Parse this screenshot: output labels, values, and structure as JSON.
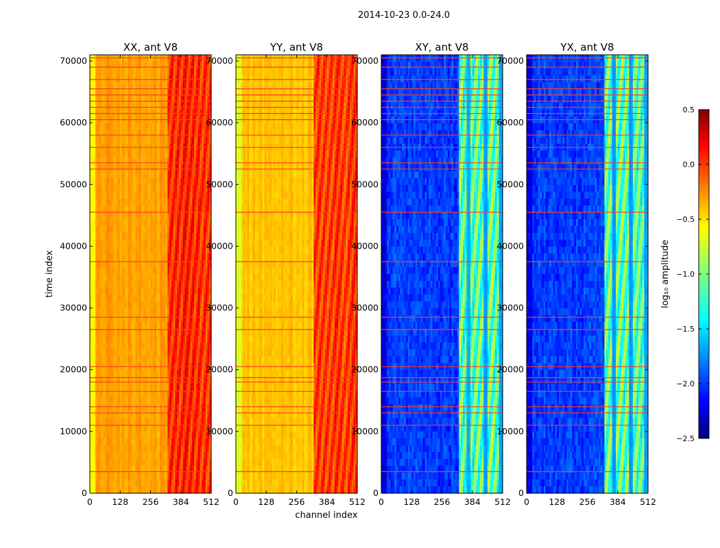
{
  "chart_data": {
    "type": "heatmap",
    "suptitle": "2014-10-23 0.0-24.0",
    "xlabel": "channel index",
    "ylabel": "time index",
    "x_range": [
      0,
      512
    ],
    "y_range": [
      0,
      71000
    ],
    "x_ticks": [
      0,
      128,
      256,
      384,
      512
    ],
    "y_ticks": [
      0,
      10000,
      20000,
      30000,
      40000,
      50000,
      60000,
      70000
    ],
    "colormap": "jet",
    "colorbar": {
      "label": "log₁₀ amplitude",
      "range": [
        -2.5,
        0.5
      ],
      "ticks": [
        0.5,
        0.0,
        -0.5,
        -1.0,
        -1.5,
        -2.0,
        -2.5
      ],
      "tick_labels": [
        "0.5",
        "0.0",
        "−0.5",
        "−1.0",
        "−1.5",
        "−2.0",
        "−2.5"
      ]
    },
    "panels": [
      {
        "title": "XX, ant V8",
        "base_level": -0.35,
        "band_level": 0.0,
        "kind": "auto"
      },
      {
        "title": "YY, ant V8",
        "base_level": -0.45,
        "band_level": -0.05,
        "kind": "auto"
      },
      {
        "title": "XY, ant V8",
        "base_level": -1.95,
        "band_level": -1.1,
        "kind": "cross"
      },
      {
        "title": "YX, ant V8",
        "base_level": -1.95,
        "band_level": -1.1,
        "kind": "cross"
      }
    ],
    "flagged_time_rows": [
      3500,
      11000,
      13000,
      14000,
      16500,
      18000,
      18700,
      20500,
      26500,
      28500,
      37500,
      45500,
      52500,
      53500,
      56000,
      58000,
      60500,
      61500,
      62500,
      63500,
      64500,
      65500,
      67000,
      69000,
      70500
    ],
    "high_amplitude_band_channels": [
      325,
      512
    ]
  }
}
